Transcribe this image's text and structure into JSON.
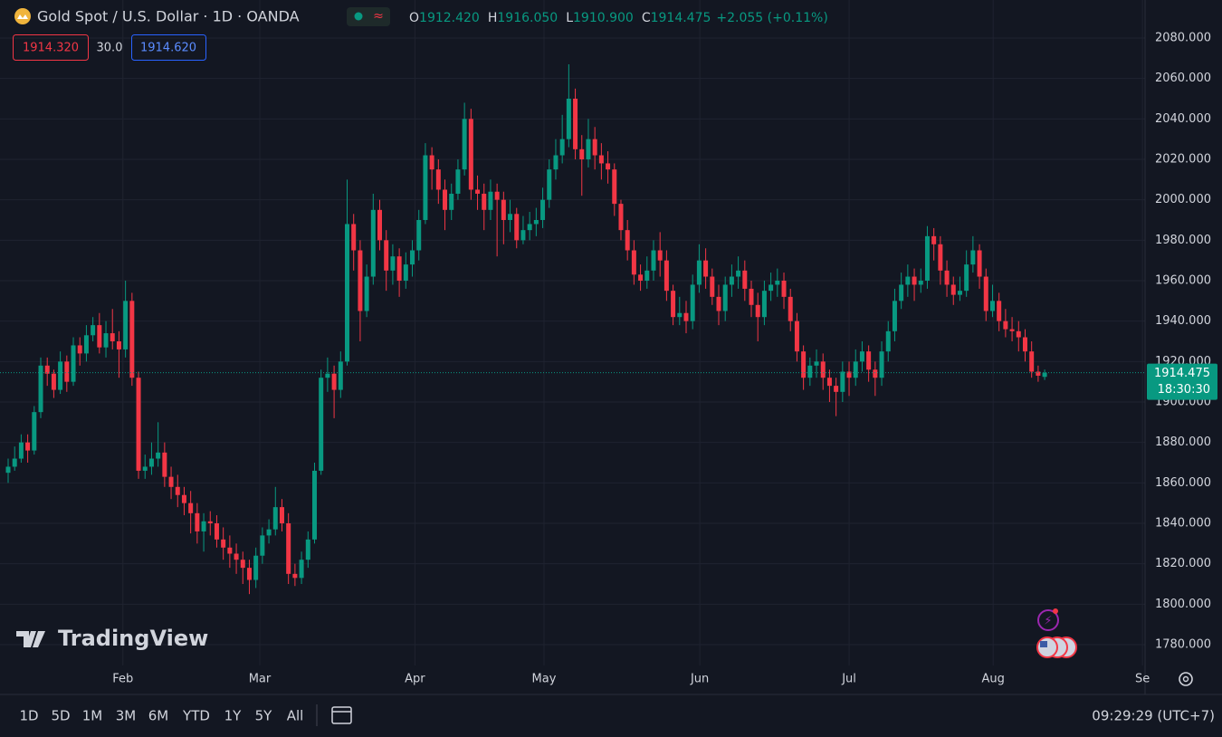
{
  "chart_data": {
    "type": "candlestick",
    "title": "Gold Spot / U.S. Dollar · 1D · OANDA",
    "ohlc_legend": [
      {
        "key": "O",
        "value": "1912.420"
      },
      {
        "key": "H",
        "value": "1916.050"
      },
      {
        "key": "L",
        "value": "1910.900"
      },
      {
        "key": "C",
        "value": "1914.475"
      }
    ],
    "change": "+2.055 (+0.11%)",
    "up_color": "#089981",
    "down_color": "#f23645",
    "grid": true,
    "series": {
      "open": [
        1865,
        1868,
        1872,
        1880,
        1876,
        1895,
        1918,
        1914,
        1906,
        1920,
        1910,
        1928,
        1924,
        1933,
        1938,
        1927,
        1934,
        1930,
        1926,
        1950,
        1912,
        1866,
        1868,
        1872,
        1875,
        1863,
        1858,
        1854,
        1850,
        1845,
        1836,
        1841,
        1840,
        1832,
        1828,
        1825,
        1822,
        1818,
        1812,
        1824,
        1834,
        1837,
        1848,
        1840,
        1815,
        1813,
        1822,
        1832,
        1866,
        1912,
        1914,
        1906,
        1920,
        1988,
        1975,
        1945,
        1962,
        1995,
        1980,
        1965,
        1972,
        1960,
        1968,
        1975,
        1990,
        2022,
        2015,
        2005,
        1995,
        2003,
        2015,
        2040,
        2005,
        2003,
        1995,
        2004,
        2000,
        1990,
        1993,
        1980,
        1985,
        1988,
        1990,
        2000,
        2015,
        2022,
        2030,
        2050,
        2025,
        2020,
        2030,
        2022,
        2018,
        2015,
        1998,
        1985,
        1975,
        1963,
        1960,
        1965,
        1975,
        1970,
        1955,
        1942,
        1944,
        1940,
        1958,
        1970,
        1962,
        1952,
        1945,
        1958,
        1962,
        1965,
        1956,
        1948,
        1942,
        1955,
        1958,
        1960,
        1952,
        1940,
        1925,
        1912,
        1918,
        1920,
        1912,
        1908,
        1905,
        1915,
        1912,
        1920,
        1925,
        1916,
        1912,
        1925,
        1935,
        1950,
        1958,
        1962,
        1958,
        1960,
        1982,
        1978,
        1965,
        1958,
        1953,
        1955,
        1968,
        1975,
        1962,
        1945,
        1950,
        1940,
        1936,
        1935,
        1932,
        1925,
        1915,
        1912.42
      ],
      "high": [
        1872,
        1878,
        1884,
        1884,
        1898,
        1922,
        1922,
        1916,
        1925,
        1923,
        1932,
        1932,
        1938,
        1942,
        1944,
        1940,
        1946,
        1935,
        1960,
        1954,
        1915,
        1874,
        1880,
        1890,
        1880,
        1868,
        1864,
        1858,
        1856,
        1850,
        1845,
        1846,
        1844,
        1838,
        1834,
        1830,
        1826,
        1822,
        1828,
        1838,
        1842,
        1858,
        1852,
        1845,
        1820,
        1826,
        1836,
        1870,
        1916,
        1922,
        1918,
        1925,
        2010,
        1993,
        1980,
        1968,
        2003,
        2000,
        1985,
        1978,
        1976,
        1974,
        1980,
        1995,
        2028,
        2026,
        2020,
        2010,
        2008,
        2020,
        2048,
        2045,
        2012,
        2008,
        2010,
        2008,
        2004,
        2000,
        1996,
        1992,
        1994,
        1996,
        2006,
        2020,
        2030,
        2042,
        2067,
        2055,
        2032,
        2040,
        2036,
        2028,
        2024,
        2018,
        2000,
        1990,
        1980,
        1968,
        1972,
        1980,
        1984,
        1975,
        1958,
        1952,
        1950,
        1963,
        1978,
        1976,
        1966,
        1958,
        1962,
        1968,
        1972,
        1970,
        1960,
        1954,
        1960,
        1964,
        1966,
        1964,
        1956,
        1944,
        1928,
        1922,
        1926,
        1924,
        1916,
        1912,
        1920,
        1920,
        1926,
        1930,
        1928,
        1920,
        1930,
        1940,
        1956,
        1964,
        1968,
        1966,
        1966,
        1987,
        1986,
        1982,
        1970,
        1962,
        1962,
        1975,
        1982,
        1978,
        1966,
        1958,
        1954,
        1946,
        1942,
        1940,
        1936,
        1930,
        1918,
        1916.05
      ],
      "low": [
        1860,
        1866,
        1870,
        1870,
        1874,
        1892,
        1908,
        1902,
        1904,
        1905,
        1908,
        1918,
        1920,
        1930,
        1924,
        1922,
        1926,
        1912,
        1922,
        1908,
        1862,
        1862,
        1864,
        1868,
        1858,
        1852,
        1848,
        1844,
        1835,
        1830,
        1826,
        1834,
        1828,
        1822,
        1818,
        1815,
        1810,
        1805,
        1808,
        1820,
        1830,
        1834,
        1836,
        1810,
        1809,
        1810,
        1818,
        1830,
        1864,
        1905,
        1892,
        1902,
        1918,
        1965,
        1930,
        1942,
        1958,
        1975,
        1955,
        1958,
        1952,
        1956,
        1962,
        1970,
        1988,
        2005,
        1998,
        1985,
        1990,
        2000,
        2012,
        2000,
        1995,
        1985,
        1990,
        1972,
        1978,
        1984,
        1976,
        1978,
        1980,
        1982,
        1986,
        1996,
        2010,
        2018,
        2026,
        2020,
        2002,
        2016,
        2015,
        2010,
        2008,
        1992,
        1980,
        1970,
        1958,
        1955,
        1956,
        1960,
        1962,
        1950,
        1938,
        1938,
        1934,
        1936,
        1954,
        1956,
        1948,
        1938,
        1940,
        1952,
        1956,
        1950,
        1942,
        1930,
        1938,
        1950,
        1952,
        1946,
        1935,
        1920,
        1906,
        1908,
        1912,
        1906,
        1900,
        1893,
        1900,
        1903,
        1908,
        1915,
        1910,
        1903,
        1908,
        1920,
        1930,
        1946,
        1952,
        1950,
        1954,
        1956,
        1970,
        1958,
        1952,
        1948,
        1950,
        1952,
        1964,
        1956,
        1940,
        1942,
        1935,
        1932,
        1930,
        1925,
        1920,
        1912,
        1910,
        1910.9
      ],
      "close": [
        1868,
        1872,
        1880,
        1876,
        1895,
        1918,
        1914,
        1906,
        1920,
        1910,
        1928,
        1924,
        1933,
        1938,
        1927,
        1934,
        1930,
        1926,
        1950,
        1912,
        1866,
        1868,
        1872,
        1875,
        1863,
        1858,
        1854,
        1850,
        1845,
        1836,
        1841,
        1840,
        1832,
        1828,
        1825,
        1822,
        1818,
        1812,
        1824,
        1834,
        1837,
        1848,
        1840,
        1815,
        1813,
        1822,
        1832,
        1866,
        1912,
        1914,
        1906,
        1920,
        1988,
        1975,
        1945,
        1962,
        1995,
        1980,
        1965,
        1972,
        1960,
        1968,
        1975,
        1990,
        2022,
        2015,
        2005,
        1995,
        2003,
        2015,
        2040,
        2005,
        2003,
        1995,
        2004,
        2000,
        1990,
        1993,
        1980,
        1985,
        1988,
        1990,
        2000,
        2015,
        2022,
        2030,
        2050,
        2025,
        2020,
        2030,
        2022,
        2018,
        2015,
        1998,
        1985,
        1975,
        1963,
        1960,
        1965,
        1975,
        1970,
        1955,
        1942,
        1944,
        1940,
        1958,
        1970,
        1962,
        1952,
        1945,
        1958,
        1962,
        1965,
        1956,
        1948,
        1942,
        1955,
        1958,
        1960,
        1952,
        1940,
        1925,
        1912,
        1918,
        1920,
        1912,
        1908,
        1905,
        1915,
        1912,
        1920,
        1925,
        1916,
        1912,
        1925,
        1935,
        1950,
        1958,
        1962,
        1958,
        1960,
        1982,
        1978,
        1965,
        1958,
        1953,
        1955,
        1968,
        1975,
        1962,
        1945,
        1950,
        1940,
        1936,
        1935,
        1932,
        1925,
        1915,
        1913,
        1914.475
      ]
    },
    "xlim": [
      -1.25,
      174.4
    ],
    "xticks": [
      {
        "value": 17.6,
        "label": "Feb"
      },
      {
        "value": 38.6,
        "label": "Mar"
      },
      {
        "value": 62.4,
        "label": "Apr"
      },
      {
        "value": 82.2,
        "label": "May"
      },
      {
        "value": 106.1,
        "label": "Jun"
      },
      {
        "value": 129,
        "label": "Jul"
      },
      {
        "value": 151.1,
        "label": "Aug"
      },
      {
        "value": 174,
        "label": "Se"
      }
    ],
    "ylim": [
      1769.7,
      2098.8
    ],
    "yticks": [
      {
        "value": 1780,
        "label": "1780.000"
      },
      {
        "value": 1800,
        "label": "1800.000"
      },
      {
        "value": 1820,
        "label": "1820.000"
      },
      {
        "value": 1840,
        "label": "1840.000"
      },
      {
        "value": 1860,
        "label": "1860.000"
      },
      {
        "value": 1880,
        "label": "1880.000"
      },
      {
        "value": 1900,
        "label": "1900.000"
      },
      {
        "value": 1920,
        "label": "1920.000"
      },
      {
        "value": 1940,
        "label": "1940.000"
      },
      {
        "value": 1960,
        "label": "1960.000"
      },
      {
        "value": 1980,
        "label": "1980.000"
      },
      {
        "value": 2000,
        "label": "2000.000"
      },
      {
        "value": 2020,
        "label": "2020.000"
      },
      {
        "value": 2040,
        "label": "2040.000"
      },
      {
        "value": 2060,
        "label": "2060.000"
      },
      {
        "value": 2080,
        "label": "2080.000"
      }
    ],
    "price_tag": {
      "value": 1914.475,
      "countdown": "18:30:30"
    }
  },
  "order_panel": {
    "sell": "1914.320",
    "spread": "30.0",
    "buy": "1914.620"
  },
  "watermark": "TradingView",
  "toolbar": {
    "ranges": [
      "1D",
      "5D",
      "1M",
      "3M",
      "6M",
      "YTD",
      "1Y",
      "5Y",
      "All"
    ],
    "clock": "09:29:29 (UTC+7)"
  }
}
